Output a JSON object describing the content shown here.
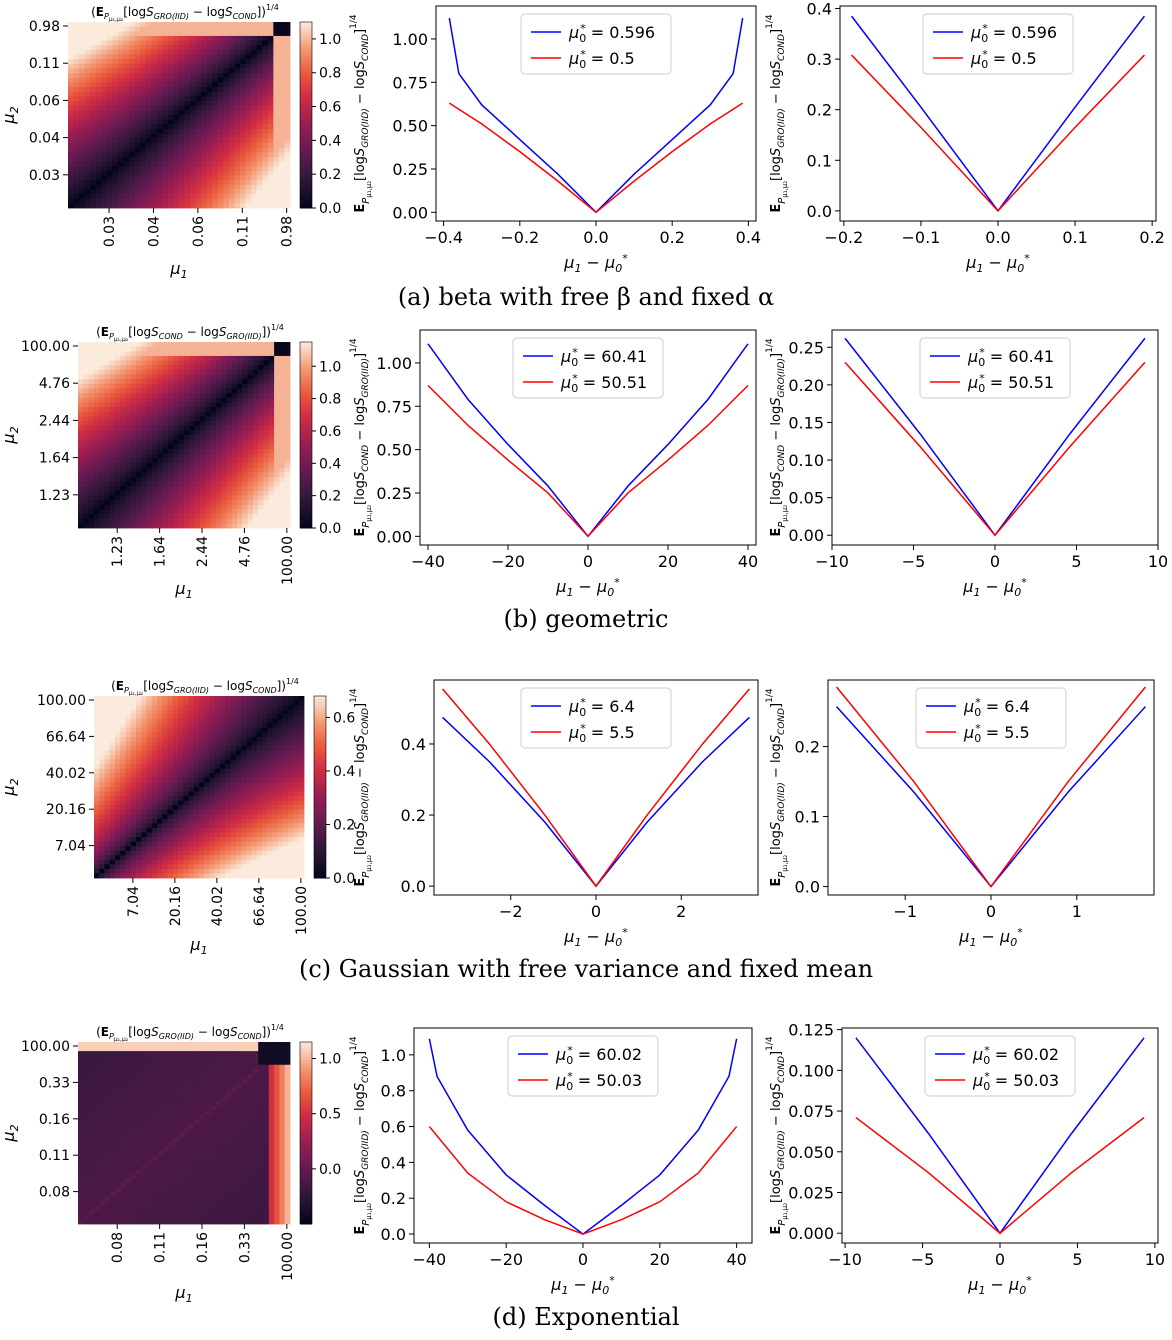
{
  "labels": {
    "mu1": "μ1",
    "mu2": "μ2",
    "diff": "μ1 − μ0*"
  },
  "captions": [
    "(a) beta with free β and fixed α",
    "(b) geometric",
    "(c) Gaussian with free variance and fixed mean",
    "(d) Exponential"
  ],
  "chart_data": [
    {
      "type": "heatmap",
      "panel": "a-heatmap",
      "title": "(E_{Pμ1,μ2}[log S_GRO(IID) − log S_COND])^1/4",
      "xlabel": "μ1",
      "ylabel": "μ2",
      "xticks": [
        "0.03",
        "0.04",
        "0.06",
        "0.11",
        "0.98"
      ],
      "yticks": [
        "0.98",
        "0.11",
        "0.06",
        "0.04",
        "0.03"
      ],
      "pattern": "diagonal-dark-grows-off-diagonal",
      "colorbar": {
        "min": 0.0,
        "max": 1.1,
        "ticks": [
          "0.0",
          "0.2",
          "0.4",
          "0.6",
          "0.8",
          "1.0"
        ],
        "colormap": "rocket"
      }
    },
    {
      "type": "line",
      "panel": "a-line-1",
      "ylabel": "E_{Pμ1,μ2}[log S_GRO(IID) − log S_COND]^1/4",
      "xlabel": "μ1 − μ0*",
      "xlim": [
        -0.42,
        0.42
      ],
      "ylim": [
        -0.05,
        1.19
      ],
      "xticks": [
        "-0.4",
        "-0.2",
        "0.0",
        "0.2",
        "0.4"
      ],
      "yticks": [
        "0.00",
        "0.25",
        "0.50",
        "0.75",
        "1.00"
      ],
      "legend": "top-center",
      "series": [
        {
          "name": "μ0* = 0.596",
          "color": "#0000ff",
          "points": [
            [
              -0.385,
              1.12
            ],
            [
              -0.36,
              0.8
            ],
            [
              -0.3,
              0.62
            ],
            [
              -0.2,
              0.42
            ],
            [
              -0.1,
              0.22
            ],
            [
              0,
              0
            ],
            [
              0.1,
              0.22
            ],
            [
              0.2,
              0.42
            ],
            [
              0.3,
              0.62
            ],
            [
              0.36,
              0.8
            ],
            [
              0.385,
              1.12
            ]
          ]
        },
        {
          "name": "μ0* = 0.5",
          "color": "#ff0000",
          "points": [
            [
              -0.385,
              0.63
            ],
            [
              -0.3,
              0.51
            ],
            [
              -0.2,
              0.35
            ],
            [
              -0.1,
              0.18
            ],
            [
              0,
              0
            ],
            [
              0.1,
              0.18
            ],
            [
              0.2,
              0.35
            ],
            [
              0.3,
              0.51
            ],
            [
              0.385,
              0.63
            ]
          ]
        }
      ]
    },
    {
      "type": "line",
      "panel": "a-line-2",
      "ylabel": "E_{Pμ1,μ2}[log S_GRO(IID) − log S_COND]^1/4",
      "xlabel": "μ1 − μ0*",
      "xlim": [
        -0.205,
        0.205
      ],
      "ylim": [
        -0.02,
        0.405
      ],
      "xticks": [
        "-0.2",
        "-0.1",
        "0.0",
        "0.1",
        "0.2"
      ],
      "yticks": [
        "0.0",
        "0.1",
        "0.2",
        "0.3",
        "0.4"
      ],
      "legend": "top-center",
      "series": [
        {
          "name": "μ0* = 0.596",
          "color": "#0000ff",
          "points": [
            [
              -0.19,
              0.385
            ],
            [
              -0.1,
              0.205
            ],
            [
              0,
              0
            ],
            [
              0.1,
              0.205
            ],
            [
              0.19,
              0.385
            ]
          ]
        },
        {
          "name": "μ0* = 0.5",
          "color": "#ff0000",
          "points": [
            [
              -0.19,
              0.308
            ],
            [
              -0.1,
              0.165
            ],
            [
              0,
              0
            ],
            [
              0.1,
              0.165
            ],
            [
              0.19,
              0.308
            ]
          ]
        }
      ]
    },
    {
      "type": "heatmap",
      "panel": "b-heatmap",
      "title": "(E_{Pμ1,μ2}[log S_COND − log S_GRO(IID)])^1/4",
      "xlabel": "μ1",
      "ylabel": "μ2",
      "xticks": [
        "1.23",
        "1.64",
        "2.44",
        "4.76",
        "100.00"
      ],
      "yticks": [
        "100.00",
        "4.76",
        "2.44",
        "1.64",
        "1.23"
      ],
      "pattern": "diagonal-dark-grows-off-diagonal",
      "colorbar": {
        "min": 0.0,
        "max": 1.15,
        "ticks": [
          "0.0",
          "0.2",
          "0.4",
          "0.6",
          "0.8",
          "1.0"
        ],
        "colormap": "rocket"
      }
    },
    {
      "type": "line",
      "panel": "b-line-1",
      "ylabel": "E_{Pμ1,μ2}[log S_COND − log S_GRO(IID)]^1/4",
      "xlabel": "μ1 − μ0*",
      "xlim": [
        -42,
        42
      ],
      "ylim": [
        -0.05,
        1.19
      ],
      "xticks": [
        "-40",
        "-20",
        "0",
        "20",
        "40"
      ],
      "yticks": [
        "0.00",
        "0.25",
        "0.50",
        "0.75",
        "1.00"
      ],
      "legend": "top-center",
      "series": [
        {
          "name": "μ0* = 60.41",
          "color": "#0000ff",
          "points": [
            [
              -40,
              1.11
            ],
            [
              -30,
              0.79
            ],
            [
              -20,
              0.53
            ],
            [
              -10,
              0.29
            ],
            [
              0,
              0
            ],
            [
              10,
              0.29
            ],
            [
              20,
              0.53
            ],
            [
              30,
              0.79
            ],
            [
              40,
              1.11
            ]
          ]
        },
        {
          "name": "μ0* = 50.51",
          "color": "#ff0000",
          "points": [
            [
              -40,
              0.87
            ],
            [
              -30,
              0.64
            ],
            [
              -20,
              0.44
            ],
            [
              -10,
              0.25
            ],
            [
              0,
              0
            ],
            [
              10,
              0.25
            ],
            [
              20,
              0.44
            ],
            [
              30,
              0.64
            ],
            [
              40,
              0.87
            ]
          ]
        }
      ]
    },
    {
      "type": "line",
      "panel": "b-line-2",
      "ylabel": "E_{Pμ1,μ2}[log S_COND − log S_GRO(IID)]^1/4",
      "xlabel": "μ1 − μ0*",
      "xlim": [
        -10,
        10
      ],
      "ylim": [
        -0.013,
        0.273
      ],
      "xticks": [
        "-10",
        "-5",
        "0",
        "5",
        "10"
      ],
      "yticks": [
        "0.00",
        "0.05",
        "0.10",
        "0.15",
        "0.20",
        "0.25"
      ],
      "legend": "top-center",
      "series": [
        {
          "name": "μ0* = 60.41",
          "color": "#0000ff",
          "points": [
            [
              -9.2,
              0.262
            ],
            [
              -4.6,
              0.135
            ],
            [
              0,
              0
            ],
            [
              4.6,
              0.135
            ],
            [
              9.2,
              0.262
            ]
          ]
        },
        {
          "name": "μ0* = 50.51",
          "color": "#ff0000",
          "points": [
            [
              -9.2,
              0.23
            ],
            [
              -4.6,
              0.118
            ],
            [
              0,
              0
            ],
            [
              4.6,
              0.118
            ],
            [
              9.2,
              0.23
            ]
          ]
        }
      ]
    },
    {
      "type": "heatmap",
      "panel": "c-heatmap",
      "title": "(E_{Pμ1,μ2}[log S_GRO(IID) − log S_COND])^1/4",
      "xlabel": "μ1",
      "ylabel": "μ2",
      "xticks": [
        "7.04",
        "20.16",
        "40.02",
        "66.64",
        "100.00"
      ],
      "yticks": [
        "100.00",
        "66.64",
        "40.02",
        "20.16",
        "7.04"
      ],
      "pattern": "diagonal-dark-bright-edges",
      "colorbar": {
        "min": 0.0,
        "max": 0.68,
        "ticks": [
          "0.0",
          "0.2",
          "0.4",
          "0.6"
        ],
        "colormap": "rocket"
      }
    },
    {
      "type": "line",
      "panel": "c-line-1",
      "ylabel": "E_{Pμ1,μ2}[log S_GRO(IID) − log S_COND]^1/4",
      "xlabel": "μ1 − μ0*",
      "xlim": [
        -3.8,
        3.8
      ],
      "ylim": [
        -0.025,
        0.58
      ],
      "xticks": [
        "-2",
        "0",
        "2"
      ],
      "yticks": [
        "0.0",
        "0.2",
        "0.4"
      ],
      "legend": "top-center",
      "series": [
        {
          "name": "μ0* = 6.4",
          "color": "#0000ff",
          "points": [
            [
              -3.6,
              0.475
            ],
            [
              -2.5,
              0.35
            ],
            [
              -1.2,
              0.18
            ],
            [
              0,
              0
            ],
            [
              1.2,
              0.18
            ],
            [
              2.5,
              0.35
            ],
            [
              3.6,
              0.475
            ]
          ]
        },
        {
          "name": "μ0* = 5.5",
          "color": "#ff0000",
          "points": [
            [
              -3.6,
              0.555
            ],
            [
              -2.5,
              0.4
            ],
            [
              -1.2,
              0.2
            ],
            [
              0,
              0
            ],
            [
              1.2,
              0.2
            ],
            [
              2.5,
              0.4
            ],
            [
              3.6,
              0.555
            ]
          ]
        }
      ]
    },
    {
      "type": "line",
      "panel": "c-line-2",
      "ylabel": "E_{Pμ1,μ2}[log S_GRO(IID) − log S_COND]^1/4",
      "xlabel": "μ1 − μ0*",
      "xlim": [
        -1.9,
        1.9
      ],
      "ylim": [
        -0.012,
        0.295
      ],
      "xticks": [
        "-1",
        "0",
        "1"
      ],
      "yticks": [
        "0.0",
        "0.1",
        "0.2"
      ],
      "legend": "top-center",
      "series": [
        {
          "name": "μ0* = 6.4",
          "color": "#0000ff",
          "points": [
            [
              -1.8,
              0.257
            ],
            [
              -0.9,
              0.135
            ],
            [
              0,
              0
            ],
            [
              0.9,
              0.135
            ],
            [
              1.8,
              0.257
            ]
          ]
        },
        {
          "name": "μ0* = 5.5",
          "color": "#ff0000",
          "points": [
            [
              -1.8,
              0.285
            ],
            [
              -0.9,
              0.15
            ],
            [
              0,
              0
            ],
            [
              0.9,
              0.15
            ],
            [
              1.8,
              0.285
            ]
          ]
        }
      ]
    },
    {
      "type": "heatmap",
      "panel": "d-heatmap",
      "title": "(E_{Pμ1,μ2}[log S_GRO(IID) − log S_COND])^1/4",
      "xlabel": "μ1",
      "ylabel": "μ2",
      "xticks": [
        "0.08",
        "0.11",
        "0.16",
        "0.33",
        "100.00"
      ],
      "yticks": [
        "100.00",
        "0.33",
        "0.16",
        "0.11",
        "0.08"
      ],
      "pattern": "dark-with-bright-top-right",
      "colorbar": {
        "min": -0.5,
        "max": 1.15,
        "ticks": [
          "0.0",
          "0.5",
          "1.0"
        ],
        "colormap": "rocket"
      }
    },
    {
      "type": "line",
      "panel": "d-line-1",
      "ylabel": "E_{Pμ1,μ2}[log S_GRO(IID) − log S_COND]^1/4",
      "xlabel": "μ1 − μ0*",
      "xlim": [
        -44,
        44
      ],
      "ylim": [
        -0.05,
        1.15
      ],
      "xticks": [
        "-40",
        "-20",
        "0",
        "20",
        "40"
      ],
      "yticks": [
        "0.0",
        "0.2",
        "0.4",
        "0.6",
        "0.8",
        "1.0"
      ],
      "legend": "top-center",
      "series": [
        {
          "name": "μ0* = 60.02",
          "color": "#0000ff",
          "points": [
            [
              -40,
              1.09
            ],
            [
              -38,
              0.88
            ],
            [
              -30,
              0.58
            ],
            [
              -20,
              0.33
            ],
            [
              -10,
              0.16
            ],
            [
              0,
              0
            ],
            [
              10,
              0.16
            ],
            [
              20,
              0.33
            ],
            [
              30,
              0.58
            ],
            [
              38,
              0.88
            ],
            [
              40,
              1.09
            ]
          ]
        },
        {
          "name": "μ0* = 50.03",
          "color": "#ff0000",
          "points": [
            [
              -40,
              0.6
            ],
            [
              -30,
              0.34
            ],
            [
              -20,
              0.18
            ],
            [
              -10,
              0.08
            ],
            [
              0,
              0
            ],
            [
              10,
              0.08
            ],
            [
              20,
              0.18
            ],
            [
              30,
              0.34
            ],
            [
              40,
              0.6
            ]
          ]
        }
      ]
    },
    {
      "type": "line",
      "panel": "d-line-2",
      "ylabel": "E_{Pμ1,μ2}[log S_GRO(IID) − log S_COND]^1/4",
      "xlabel": "μ1 − μ0*",
      "xlim": [
        -10.2,
        10.2
      ],
      "ylim": [
        -0.006,
        0.126
      ],
      "xticks": [
        "-10",
        "-5",
        "0",
        "5",
        "10"
      ],
      "yticks": [
        "0.000",
        "0.025",
        "0.050",
        "0.075",
        "0.100",
        "0.125"
      ],
      "legend": "top-center",
      "series": [
        {
          "name": "μ0* = 60.02",
          "color": "#0000ff",
          "points": [
            [
              -9.3,
              0.12
            ],
            [
              -4.6,
              0.061
            ],
            [
              0,
              0
            ],
            [
              4.6,
              0.061
            ],
            [
              9.3,
              0.12
            ]
          ]
        },
        {
          "name": "μ0* = 50.03",
          "color": "#ff0000",
          "points": [
            [
              -9.3,
              0.071
            ],
            [
              -4.6,
              0.037
            ],
            [
              0,
              0
            ],
            [
              4.6,
              0.037
            ],
            [
              9.3,
              0.071
            ]
          ]
        }
      ]
    }
  ]
}
